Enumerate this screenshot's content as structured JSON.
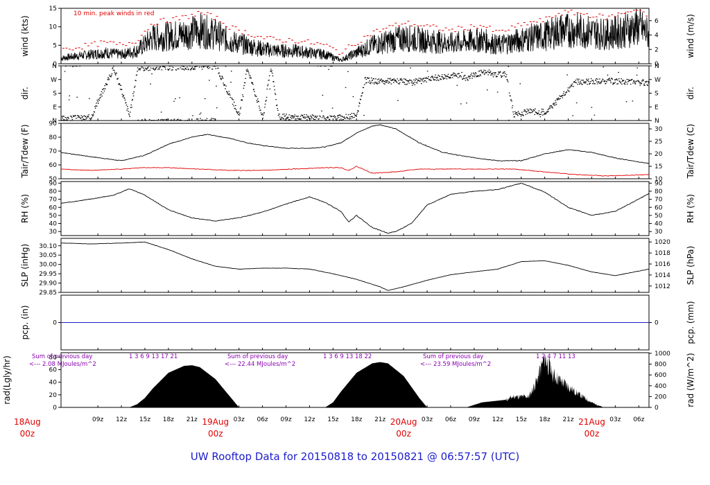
{
  "title": "UW Rooftop Data for 20150818  to  20150821 @ 06:57:57  (UTC)",
  "colors": {
    "line": "#000000",
    "dewpoint": "#e00000",
    "peak": "#e00000",
    "precip": "#1c1ccc",
    "annotation": "#8a00b0",
    "title": "#1c1ccc"
  },
  "chart_data": {
    "type": "line",
    "time_axis": {
      "range_hours_since_18Aug_00z": [
        4.3,
        79.3
      ],
      "ticks": [
        "09z",
        "12z",
        "15z",
        "18z",
        "21z",
        "03z",
        "06z",
        "09z",
        "12z",
        "15z",
        "18z",
        "21z",
        "03z",
        "06z",
        "09z",
        "12z",
        "15z",
        "18z",
        "21z",
        "03z",
        "06z"
      ],
      "day_labels": [
        {
          "date": "18Aug",
          "time": "00z"
        },
        {
          "date": "19Aug",
          "time": "00z"
        },
        {
          "date": "20Aug",
          "time": "00z"
        },
        {
          "date": "21Aug",
          "time": "00z"
        }
      ]
    },
    "panels": [
      {
        "id": "wind",
        "ylabel_left": "wind (kts)",
        "ylabel_right": "wind (m/s)",
        "ylim": [
          0,
          15
        ],
        "left_ticks": [
          "0",
          "5",
          "10",
          "15"
        ],
        "right_ticks": [
          "0",
          "2",
          "4",
          "6"
        ],
        "right_factor": 1.944,
        "annotation": "10 min. peak winds in red",
        "series": [
          {
            "type": "line",
            "x": [
              4.3,
              6,
              8,
              10,
              12,
              14,
              16,
              18,
              20,
              22,
              24,
              26,
              28,
              30,
              32,
              34,
              36,
              38,
              40,
              42,
              44,
              46,
              48,
              50,
              52,
              54,
              56,
              58,
              60,
              62,
              64,
              66,
              68,
              70,
              72,
              74,
              76,
              78,
              79.3
            ],
            "y": [
              1.5,
              2,
              2.5,
              3,
              2.5,
              3.5,
              7,
              7.5,
              8,
              9,
              8,
              6,
              5,
              4,
              3.5,
              3.5,
              3,
              2.5,
              1,
              3,
              5,
              6,
              7,
              6.5,
              6,
              5.5,
              6,
              6.5,
              5,
              6,
              7,
              7.5,
              9,
              9,
              8.5,
              8,
              9,
              10,
              8
            ]
          }
        ]
      },
      {
        "id": "dir",
        "ylabel_left": "dir.",
        "ylabel_right": "dir.",
        "ylim": [
          0,
          360
        ],
        "left_ticks": [
          "N",
          "E",
          "S",
          "W",
          "N"
        ],
        "right_ticks": [
          "N",
          "E",
          "S",
          "W",
          "N"
        ],
        "series": [
          {
            "type": "scatter",
            "x": [
              4.3,
              8,
              11,
              13,
              14,
              16,
              20,
              22,
              24,
              27,
              28,
              30,
              31,
              32,
              34,
              36,
              38,
              40,
              42,
              43,
              45,
              47,
              49,
              52,
              54,
              56,
              58,
              61,
              62,
              64,
              66,
              70,
              74,
              79.3
            ],
            "y": [
              10,
              20,
              350,
              30,
              345,
              350,
              352,
              355,
              357,
              30,
              350,
              15,
              355,
              25,
              20,
              20,
              15,
              20,
              35,
              265,
              255,
              260,
              250,
              280,
              300,
              280,
              320,
              300,
              40,
              60,
              55,
              255,
              260,
              250
            ]
          }
        ]
      },
      {
        "id": "temp",
        "ylabel_left": "Tair/Tdew (F)",
        "ylabel_right": "Tair/Tdew (C)",
        "ylim": [
          50,
          90
        ],
        "left_ticks": [
          "50",
          "60",
          "70",
          "80",
          "90"
        ],
        "right_ticks": [
          "10",
          "15",
          "20",
          "25",
          "30"
        ],
        "series": [
          {
            "name": "",
            "type": "line",
            "x": [
              4.3,
              8,
              12,
              15,
              18,
              21,
              23,
              26,
              28,
              30,
              33,
              36,
              38,
              40,
              42,
              44,
              45,
              47,
              50,
              53,
              56,
              60,
              63,
              66,
              69,
              72,
              75,
              79.3
            ],
            "y": [
              69,
              66,
              63,
              67,
              75,
              80,
              82,
              79,
              76,
              74,
              72,
              72,
              73,
              76,
              83,
              88,
              89,
              86,
              76,
              69,
              66,
              63,
              63,
              68,
              71,
              69,
              65,
              61
            ]
          },
          {
            "name": "",
            "type": "line",
            "x": [
              4.3,
              8,
              12,
              15,
              18,
              22,
              26,
              30,
              34,
              38,
              40,
              41,
              42,
              44,
              47,
              50,
              54,
              58,
              62,
              66,
              70,
              74,
              79.3
            ],
            "y": [
              57,
              56,
              57,
              58,
              58,
              57,
              56,
              56,
              57,
              58,
              58,
              56,
              59,
              54,
              55,
              57,
              57,
              57,
              57,
              55,
              53,
              52,
              53
            ]
          }
        ]
      },
      {
        "id": "rh",
        "ylabel_left": "RH (%)",
        "ylabel_right": "RH (%)",
        "ylim": [
          25,
          92
        ],
        "left_ticks": [
          "30",
          "40",
          "50",
          "60",
          "70",
          "80",
          "90"
        ],
        "right_ticks": [
          "30",
          "40",
          "50",
          "60",
          "70",
          "80",
          "90"
        ],
        "series": [
          {
            "type": "line",
            "x": [
              4.3,
              8,
              11,
              13,
              15,
              18,
              21,
              24,
              27,
              30,
              33,
              36,
              38,
              40,
              41,
              42,
              44,
              46,
              47,
              49,
              51,
              54,
              57,
              60,
              63,
              66,
              69,
              72,
              75,
              79.3
            ],
            "y": [
              65,
              70,
              75,
              83,
              75,
              57,
              47,
              43,
              47,
              54,
              64,
              73,
              66,
              55,
              42,
              50,
              35,
              28,
              30,
              40,
              63,
              76,
              80,
              82,
              90,
              79,
              60,
              50,
              55,
              77
            ]
          }
        ]
      },
      {
        "id": "slp",
        "ylabel_left": "SLP (inHg)",
        "ylabel_right": "SLP (hPa)",
        "ylim": [
          29.85,
          30.14
        ],
        "left_ticks": [
          "29.85",
          "29.90",
          "29.95",
          "30.00",
          "30.05",
          "30.10"
        ],
        "right_ticks": [
          "1012",
          "1014",
          "1016",
          "1018",
          "1020"
        ],
        "series": [
          {
            "type": "line",
            "x": [
              4.3,
              8,
              12,
              15,
              18,
              21,
              24,
              27,
              30,
              33,
              36,
              39,
              42,
              45,
              46,
              48,
              51,
              54,
              57,
              60,
              63,
              66,
              69,
              72,
              75,
              79.3
            ],
            "y": [
              30.115,
              30.11,
              30.115,
              30.12,
              30.08,
              30.03,
              29.99,
              29.975,
              29.98,
              29.98,
              29.975,
              29.95,
              29.92,
              29.88,
              29.86,
              29.88,
              29.915,
              29.945,
              29.96,
              29.975,
              30.015,
              30.02,
              29.995,
              29.96,
              29.94,
              29.975
            ]
          }
        ]
      },
      {
        "id": "pcp",
        "ylabel_left": "pcp. (in)",
        "ylabel_right": "pcp. (mm)",
        "ylim": [
          -1,
          1
        ],
        "left_ticks": [
          "0"
        ],
        "right_ticks": [
          "0"
        ],
        "series": [
          {
            "type": "line",
            "x": [
              4.3,
              79.3
            ],
            "y": [
              0,
              0
            ]
          }
        ]
      },
      {
        "id": "rad",
        "ylabel_left": "rad(Lgly/hr)",
        "ylabel_right": "rad (W/m^2)",
        "ylim": [
          0,
          87
        ],
        "left_ticks": [
          "0",
          "20",
          "40",
          "60",
          "80"
        ],
        "right_ticks": [
          "0",
          "200",
          "400",
          "600",
          "800",
          "1000"
        ],
        "right_factor": 11.63,
        "daily_notes": [
          {
            "line1": "Sum of previous day",
            "line2": "<--- 2.08 MJoules/m^2",
            "hours": "1  3  6  9  13  17  21"
          },
          {
            "line1": "Sum of previous day",
            "line2": "<--- 22.44 MJoules/m^2",
            "hours": "1  3  6  9  13  18  22"
          },
          {
            "line1": "Sum of previous day",
            "line2": "<--- 23.59 MJoules/m^2",
            "hours": "1  2  4  7  11  13"
          }
        ],
        "series": [
          {
            "type": "area",
            "x": [
              13,
              14,
              15,
              16,
              18,
              20,
              21,
              22,
              24,
              26,
              27,
              38,
              39,
              40,
              42,
              44,
              45,
              46,
              48,
              50,
              51,
              56,
              58,
              61,
              62,
              64,
              65,
              66,
              67,
              68,
              70,
              72,
              73.5
            ],
            "y": [
              0,
              5,
              15,
              30,
              55,
              66,
              67,
              64,
              45,
              15,
              0,
              0,
              8,
              25,
              55,
              70,
              72,
              70,
              50,
              15,
              0,
              0,
              8,
              12,
              18,
              18,
              45,
              85,
              55,
              45,
              25,
              8,
              0
            ]
          }
        ]
      }
    ]
  }
}
